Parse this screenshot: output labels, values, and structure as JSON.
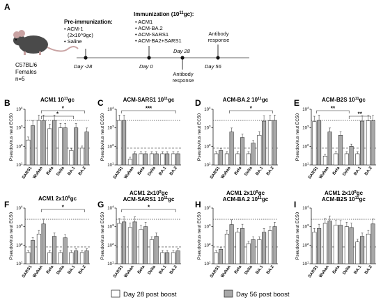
{
  "figure": {
    "panel_a": {
      "letter": "A",
      "mouse": {
        "strain": "C57BL/6",
        "sex": "Females",
        "n": "n=5"
      },
      "pre_immunization": {
        "title": "Pre-immunization:",
        "items": [
          "ACM-1",
          "(2x10^9gc)",
          "Saline"
        ]
      },
      "immunization": {
        "title_prefix": "Immunization (10",
        "title_sup": "11",
        "title_suffix": "gc):",
        "items": [
          "ACM1",
          "ACM-BA.2",
          "ACM-SARS1",
          "ACM-BA2+SARS1"
        ]
      },
      "timeline": {
        "day_minus28": "Day -28",
        "day0": "Day 0",
        "day28": "Day 28",
        "day56": "Day 56",
        "antibody_response_1": "Antibody response",
        "antibody_response_2": "Antibody response"
      }
    },
    "y_axis_label": "Pseudovirus neut EC50",
    "legend": {
      "day28": "Day 28 post boost",
      "day56": "Day 56 post boost",
      "day28_color": "#ffffff",
      "day56_color": "#a8a8a8"
    },
    "significance": {
      "one": "*",
      "two": "**",
      "three": "***"
    }
  },
  "chart_data": [
    {
      "type": "bar",
      "panel": "B",
      "title": "ACM1 10^11gc",
      "categories": [
        "SARS1",
        "Wuhan",
        "Beta",
        "Delta",
        "BA.1",
        "BA.2"
      ],
      "yscale": "log",
      "ylim": [
        10,
        10000
      ],
      "series": [
        {
          "name": "Day 28 post boost",
          "values": [
            220,
            2500,
            900,
            1000,
            60,
            80
          ]
        },
        {
          "name": "Day 56 post boost",
          "values": [
            1300,
            2500,
            2500,
            1000,
            1000,
            600
          ]
        }
      ],
      "reference_lines": [
        2500,
        80
      ],
      "significance": [
        {
          "from": "Wuhan",
          "to": "BA.2",
          "label": "*"
        },
        {
          "from": "Wuhan",
          "to": "BA.1",
          "label": "*"
        }
      ]
    },
    {
      "type": "bar",
      "panel": "C",
      "title": "ACM-SARS1 10^11gc",
      "categories": [
        "SARS1",
        "Wuhan",
        "Beta",
        "Delta",
        "BA.1",
        "BA.2"
      ],
      "yscale": "log",
      "ylim": [
        10,
        10000
      ],
      "series": [
        {
          "name": "Day 28 post boost",
          "values": [
            2500,
            20,
            40,
            40,
            40,
            40
          ]
        },
        {
          "name": "Day 56 post boost",
          "values": [
            2500,
            40,
            40,
            40,
            40,
            40
          ]
        }
      ],
      "reference_lines": [
        2500,
        80
      ],
      "significance": [
        {
          "from": "SARS1",
          "to": "BA.2",
          "label": "***"
        }
      ]
    },
    {
      "type": "bar",
      "panel": "D",
      "title": "ACM-BA.2 10^11gc",
      "categories": [
        "SARS1",
        "Wuhan",
        "Beta",
        "Delta",
        "BA.1",
        "BA.2"
      ],
      "yscale": "log",
      "ylim": [
        10,
        10000
      ],
      "series": [
        {
          "name": "Day 28 post boost",
          "values": [
            40,
            40,
            40,
            40,
            400,
            2400
          ]
        },
        {
          "name": "Day 56 post boost",
          "values": [
            60,
            600,
            300,
            150,
            2300,
            2500
          ]
        }
      ],
      "reference_lines": [
        2500,
        80
      ],
      "significance": [
        {
          "from": "Wuhan",
          "to": "BA.2",
          "label": "*"
        }
      ]
    },
    {
      "type": "bar",
      "panel": "E",
      "title": "ACM-B2S 10^11gc",
      "categories": [
        "SARS1",
        "Wuhan",
        "Beta",
        "Delta",
        "BA.1",
        "BA.2"
      ],
      "yscale": "log",
      "ylim": [
        10,
        10000
      ],
      "series": [
        {
          "name": "Day 28 post boost",
          "values": [
            2200,
            30,
            40,
            40,
            40,
            2400
          ]
        },
        {
          "name": "Day 56 post boost",
          "values": [
            2500,
            600,
            400,
            100,
            2300,
            2400
          ]
        }
      ],
      "reference_lines": [
        2500,
        80
      ],
      "significance": [
        {
          "from": "SARS1",
          "to": "Delta",
          "label": "**"
        },
        {
          "from": "Delta",
          "to": "BA.2",
          "label": "**"
        }
      ]
    },
    {
      "type": "bar",
      "panel": "F",
      "title": "ACM1 2x10^9gc",
      "categories": [
        "SARS1",
        "Wuhan",
        "Beta",
        "Delta",
        "BA.1",
        "BA.2"
      ],
      "yscale": "log",
      "ylim": [
        10,
        10000
      ],
      "series": [
        {
          "name": "Day 28 post boost",
          "values": [
            40,
            400,
            40,
            40,
            40,
            40
          ]
        },
        {
          "name": "Day 56 post boost",
          "values": [
            180,
            1400,
            300,
            250,
            50,
            50
          ]
        }
      ],
      "reference_lines": [
        2500,
        80
      ],
      "significance": [
        {
          "from": "Wuhan",
          "to": "BA.2",
          "label": "*"
        }
      ]
    },
    {
      "type": "bar",
      "panel": "G",
      "title": "ACM1 2x10^9gc / ACM-SARS1 10^11gc",
      "categories": [
        "SARS1",
        "Wuhan",
        "Beta",
        "Delta",
        "BA.1",
        "BA.2"
      ],
      "yscale": "log",
      "ylim": [
        10,
        10000
      ],
      "series": [
        {
          "name": "Day 28 post boost",
          "values": [
            1500,
            900,
            700,
            200,
            40,
            40
          ]
        },
        {
          "name": "Day 56 post boost",
          "values": [
            1800,
            1800,
            1000,
            300,
            40,
            50
          ]
        }
      ],
      "reference_lines": [
        2500,
        80
      ],
      "significance": [
        {
          "from": "SARS1",
          "to": "BA.2",
          "label": "*"
        }
      ]
    },
    {
      "type": "bar",
      "panel": "H",
      "title": "ACM1 2x10^9gc / ACM-BA.2 10^11gc",
      "categories": [
        "SARS1",
        "Wuhan",
        "Beta",
        "Delta",
        "BA.1",
        "BA.2"
      ],
      "yscale": "log",
      "ylim": [
        10,
        10000
      ],
      "series": [
        {
          "name": "Day 28 post boost",
          "values": [
            40,
            400,
            500,
            120,
            200,
            600
          ]
        },
        {
          "name": "Day 56 post boost",
          "values": [
            60,
            1300,
            800,
            200,
            500,
            1000
          ]
        }
      ],
      "reference_lines": [
        2500,
        80
      ],
      "significance": []
    },
    {
      "type": "bar",
      "panel": "I",
      "title": "ACM1 2x10^9gc / ACM-B2S 10^11gc",
      "categories": [
        "SARS1",
        "Wuhan",
        "Beta",
        "Delta",
        "BA.1",
        "BA.2"
      ],
      "yscale": "log",
      "ylim": [
        10,
        10000
      ],
      "series": [
        {
          "name": "Day 28 post boost",
          "values": [
            500,
            1500,
            1200,
            1000,
            150,
            400
          ]
        },
        {
          "name": "Day 56 post boost",
          "values": [
            800,
            2000,
            1200,
            900,
            300,
            1400
          ]
        }
      ],
      "reference_lines": [
        2500,
        80
      ],
      "significance": []
    }
  ]
}
